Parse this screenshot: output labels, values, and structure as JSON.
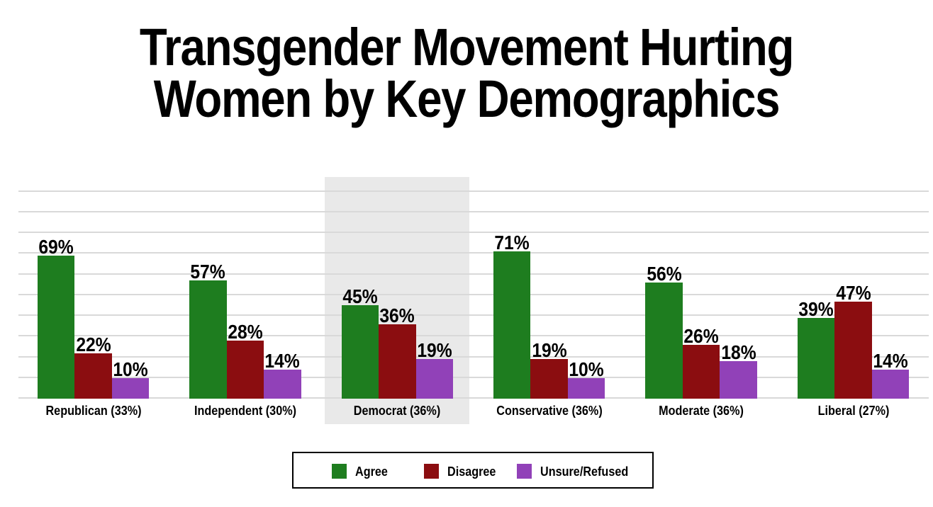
{
  "title": {
    "line1": "Transgender Movement Hurting",
    "line2": "Women by Key Demographics"
  },
  "chart_data": {
    "type": "bar",
    "title": "Transgender Movement Hurting Women by Key Demographics",
    "categories": [
      "Republican (33%)",
      "Independent (30%)",
      "Democrat (36%)",
      "Conservative (36%)",
      "Moderate (36%)",
      "Liberal (27%)"
    ],
    "series": [
      {
        "name": "Agree",
        "color": "#1e7d1f",
        "values": [
          69,
          57,
          45,
          71,
          56,
          39
        ]
      },
      {
        "name": "Disagree",
        "color": "#8b0d10",
        "values": [
          22,
          28,
          36,
          19,
          26,
          47
        ]
      },
      {
        "name": "Unsure/Refused",
        "color": "#9141b8",
        "values": [
          10,
          14,
          19,
          10,
          18,
          14
        ]
      }
    ],
    "value_suffix": "%",
    "ylim": [
      0,
      100
    ],
    "gridline_step": 10,
    "grid": "horizontal",
    "y_axis_tick_labels_shown": false,
    "legend_position": "bottom",
    "highlighted_category": "Democrat (36%)",
    "highlight_color": "#e9e9e9",
    "gridline_color": "#d9d9d9",
    "label_color": "#000000",
    "background_color": "#ffffff"
  }
}
